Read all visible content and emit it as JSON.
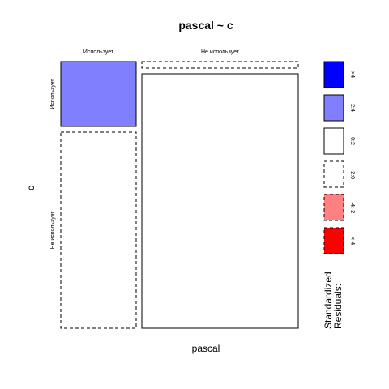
{
  "chart_data": {
    "type": "mosaic",
    "title": "pascal ~ c",
    "xlabel": "pascal",
    "ylabel": "c",
    "x_categories": [
      "Использует",
      "Не использует"
    ],
    "y_categories": [
      "Использует",
      "Не использует"
    ],
    "cells": [
      {
        "x": "Использует",
        "y": "Использует",
        "residual_band": "2:4",
        "fill": "#8080ff",
        "border": "solid"
      },
      {
        "x": "Использует",
        "y": "Не использует",
        "residual_band": "-2:0",
        "fill": "#ffffff",
        "border": "dashed"
      },
      {
        "x": "Не использует",
        "y": "Использует",
        "residual_band": "-2:0",
        "fill": "#ffffff",
        "border": "dashed"
      },
      {
        "x": "Не использует",
        "y": "Не использует",
        "residual_band": "0:2",
        "fill": "#ffffff",
        "border": "solid"
      }
    ],
    "legend": {
      "title_lines": [
        "Standardized",
        "Residuals:"
      ],
      "entries": [
        {
          "label": ">4",
          "fill": "#0000ff",
          "border": "solid"
        },
        {
          "label": "2:4",
          "fill": "#8080ff",
          "border": "solid"
        },
        {
          "label": "0:2",
          "fill": "#ffffff",
          "border": "solid"
        },
        {
          "label": "-2:0",
          "fill": "#ffffff",
          "border": "dashed"
        },
        {
          "label": "-4:-2",
          "fill": "#ff8080",
          "border": "dashed"
        },
        {
          "label": "<-4",
          "fill": "#ff0000",
          "border": "dashed"
        }
      ]
    }
  }
}
